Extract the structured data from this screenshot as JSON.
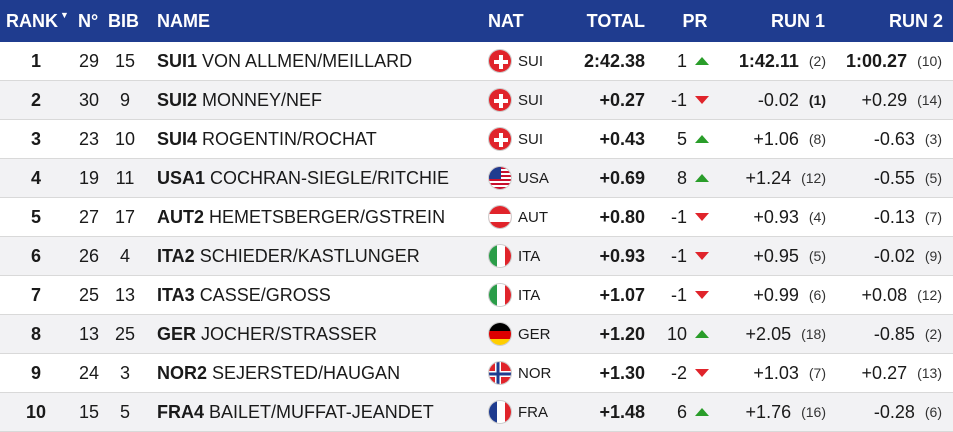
{
  "header": {
    "rank": "RANK",
    "no": "N°",
    "bib": "BIB",
    "name": "NAME",
    "nat": "NAT",
    "total": "TOTAL",
    "pr": "PR",
    "run1": "RUN 1",
    "run2": "RUN 2"
  },
  "colors": {
    "header_bg": "#1f3c8f",
    "up": "#2a9d2a",
    "down": "#e0242b"
  },
  "rows": [
    {
      "rank": "1",
      "no": "29",
      "bib": "15",
      "team": "SUI1",
      "names": "VON ALLMEN/MEILLARD",
      "flag": "sui-flag-icon",
      "nat": "SUI",
      "total": "2:42.38",
      "pr": "1",
      "trend": "up",
      "run1": "1:42.11",
      "run1_rank": "(2)",
      "run2": "1:00.27",
      "run2_rank": "(10)"
    },
    {
      "rank": "2",
      "no": "30",
      "bib": "9",
      "team": "SUI2",
      "names": "MONNEY/NEF",
      "flag": "sui-flag-icon",
      "nat": "SUI",
      "total": "+0.27",
      "pr": "-1",
      "trend": "down",
      "run1": "-0.02",
      "run1_rank": "(1)",
      "run2": "+0.29",
      "run2_rank": "(14)"
    },
    {
      "rank": "3",
      "no": "23",
      "bib": "10",
      "team": "SUI4",
      "names": "ROGENTIN/ROCHAT",
      "flag": "sui-flag-icon",
      "nat": "SUI",
      "total": "+0.43",
      "pr": "5",
      "trend": "up",
      "run1": "+1.06",
      "run1_rank": "(8)",
      "run2": "-0.63",
      "run2_rank": "(3)"
    },
    {
      "rank": "4",
      "no": "19",
      "bib": "11",
      "team": "USA1",
      "names": "COCHRAN-SIEGLE/RITCHIE",
      "flag": "usa-flag-icon",
      "nat": "USA",
      "total": "+0.69",
      "pr": "8",
      "trend": "up",
      "run1": "+1.24",
      "run1_rank": "(12)",
      "run2": "-0.55",
      "run2_rank": "(5)"
    },
    {
      "rank": "5",
      "no": "27",
      "bib": "17",
      "team": "AUT2",
      "names": "HEMETSBERGER/GSTREIN",
      "flag": "aut-flag-icon",
      "nat": "AUT",
      "total": "+0.80",
      "pr": "-1",
      "trend": "down",
      "run1": "+0.93",
      "run1_rank": "(4)",
      "run2": "-0.13",
      "run2_rank": "(7)"
    },
    {
      "rank": "6",
      "no": "26",
      "bib": "4",
      "team": "ITA2",
      "names": "SCHIEDER/KASTLUNGER",
      "flag": "ita-flag-icon",
      "nat": "ITA",
      "total": "+0.93",
      "pr": "-1",
      "trend": "down",
      "run1": "+0.95",
      "run1_rank": "(5)",
      "run2": "-0.02",
      "run2_rank": "(9)"
    },
    {
      "rank": "7",
      "no": "25",
      "bib": "13",
      "team": "ITA3",
      "names": "CASSE/GROSS",
      "flag": "ita-flag-icon",
      "nat": "ITA",
      "total": "+1.07",
      "pr": "-1",
      "trend": "down",
      "run1": "+0.99",
      "run1_rank": "(6)",
      "run2": "+0.08",
      "run2_rank": "(12)"
    },
    {
      "rank": "8",
      "no": "13",
      "bib": "25",
      "team": "GER",
      "names": "JOCHER/STRASSER",
      "flag": "ger-flag-icon",
      "nat": "GER",
      "total": "+1.20",
      "pr": "10",
      "trend": "up",
      "run1": "+2.05",
      "run1_rank": "(18)",
      "run2": "-0.85",
      "run2_rank": "(2)"
    },
    {
      "rank": "9",
      "no": "24",
      "bib": "3",
      "team": "NOR2",
      "names": "SEJERSTED/HAUGAN",
      "flag": "nor-flag-icon",
      "nat": "NOR",
      "total": "+1.30",
      "pr": "-2",
      "trend": "down",
      "run1": "+1.03",
      "run1_rank": "(7)",
      "run2": "+0.27",
      "run2_rank": "(13)"
    },
    {
      "rank": "10",
      "no": "15",
      "bib": "5",
      "team": "FRA4",
      "names": "BAILET/MUFFAT-JEANDET",
      "flag": "fra-flag-icon",
      "nat": "FRA",
      "total": "+1.48",
      "pr": "6",
      "trend": "up",
      "run1": "+1.76",
      "run1_rank": "(16)",
      "run2": "-0.28",
      "run2_rank": "(6)"
    }
  ]
}
